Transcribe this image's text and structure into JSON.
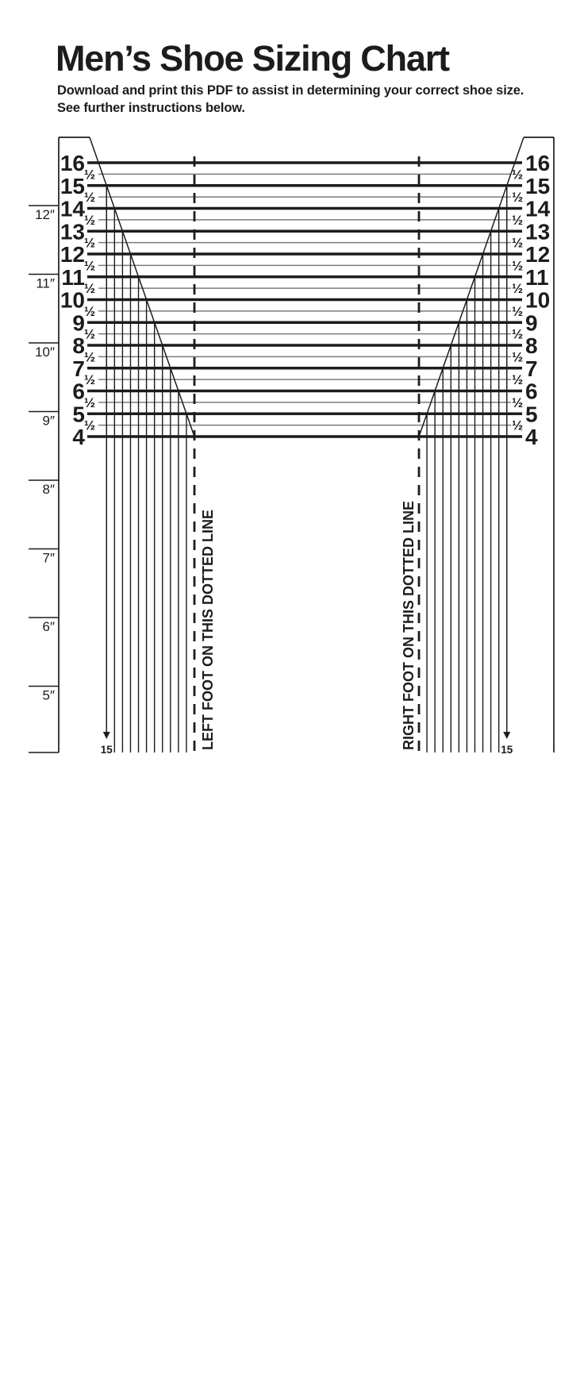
{
  "page": {
    "title": "Men’s Shoe Sizing Chart",
    "subtitle_line1": "Download and print this PDF to assist in determining your correct shoe size.",
    "subtitle_line2": "See further instructions below."
  },
  "chart": {
    "whole_sizes": [
      "16",
      "15",
      "14",
      "13",
      "12",
      "11",
      "10",
      "9",
      "8",
      "7",
      "6",
      "5",
      "4"
    ],
    "half_label": "½",
    "ruler_labels": [
      "12″",
      "11″",
      "10″",
      "9″",
      "8″",
      "7″",
      "6″",
      "5″"
    ],
    "left_dotted_line_label": "LEFT FOOT ON THIS DOTTED LINE",
    "right_dotted_line_label": "RIGHT FOOT ON THIS DOTTED LINE",
    "heel_arrow_label": "15",
    "colors": {
      "ink": "#1c1c1c",
      "half_line": "#7b7b7b",
      "background": "#ffffff"
    }
  }
}
